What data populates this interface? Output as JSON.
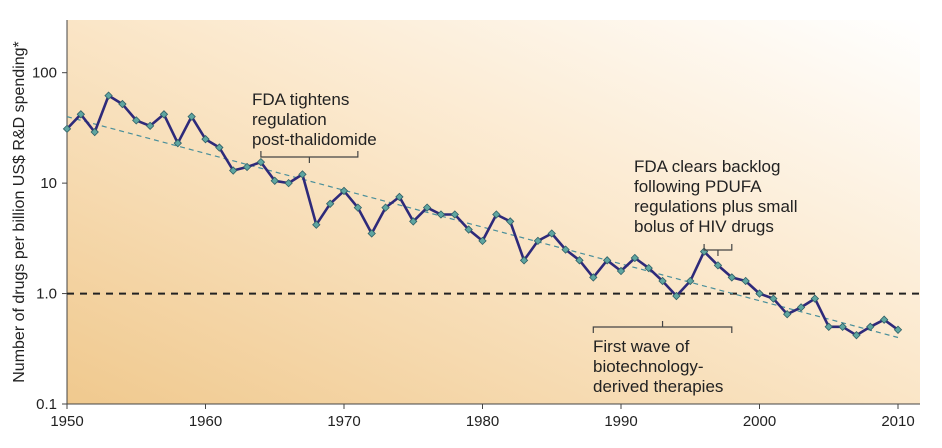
{
  "chart_data": {
    "type": "line",
    "title": "",
    "xlabel": "",
    "ylabel": "Number of drugs per billion US$ R&D spending*",
    "yscale": "log",
    "xlim": [
      1950,
      2012
    ],
    "ylim": [
      0.1,
      300
    ],
    "x_ticks": [
      "1950",
      "1960",
      "1970",
      "1980",
      "1990",
      "2000",
      "2010"
    ],
    "y_ticks": [
      "0.1",
      "1.0",
      "10",
      "100"
    ],
    "reference_line": {
      "y": 1.0,
      "style": "dashed"
    },
    "trend_line": {
      "from": [
        1950,
        40
      ],
      "to": [
        2010,
        0.4
      ],
      "style": "dashed"
    },
    "series": [
      {
        "name": "Drugs per billion US$ R&D spending",
        "color": "#2e2a7a",
        "marker_color": "#5fa5a0",
        "x": [
          1950,
          1951,
          1952,
          1953,
          1954,
          1955,
          1956,
          1957,
          1958,
          1959,
          1960,
          1961,
          1962,
          1963,
          1964,
          1965,
          1966,
          1967,
          1968,
          1969,
          1970,
          1971,
          1972,
          1973,
          1974,
          1975,
          1976,
          1977,
          1978,
          1979,
          1980,
          1981,
          1982,
          1983,
          1984,
          1985,
          1986,
          1987,
          1988,
          1989,
          1990,
          1991,
          1992,
          1993,
          1994,
          1995,
          1996,
          1997,
          1998,
          1999,
          2000,
          2001,
          2002,
          2003,
          2004,
          2005,
          2006,
          2007,
          2008,
          2009,
          2010
        ],
        "values": [
          31,
          42,
          29,
          62,
          52,
          37,
          33,
          42,
          23,
          40,
          25,
          21,
          13,
          14,
          15.5,
          10.5,
          10,
          12,
          4.2,
          6.5,
          8.5,
          6,
          3.5,
          6,
          7.5,
          4.5,
          6,
          5.2,
          5.2,
          3.8,
          3,
          5.2,
          4.5,
          2,
          3,
          3.5,
          2.5,
          2,
          1.4,
          2,
          1.6,
          2.1,
          1.7,
          1.3,
          0.95,
          1.3,
          2.4,
          1.8,
          1.4,
          1.3,
          1,
          0.9,
          0.65,
          0.75,
          0.9,
          0.5,
          0.5,
          0.42,
          0.5,
          0.58,
          0.47
        ]
      }
    ],
    "annotations": [
      {
        "text_lines": [
          "FDA tightens",
          "regulation",
          "post-thalidomide"
        ],
        "span": [
          1964,
          1971
        ]
      },
      {
        "text_lines": [
          "FDA clears backlog",
          "following PDUFA",
          "regulations plus small",
          "bolus of HIV drugs"
        ],
        "span": [
          1996,
          1998
        ]
      },
      {
        "text_lines": [
          "First wave of",
          "biotechnology-",
          "derived therapies"
        ],
        "span": [
          1988,
          1998
        ]
      }
    ],
    "background_gradient": [
      "#f0c98e",
      "#ffffff"
    ]
  }
}
